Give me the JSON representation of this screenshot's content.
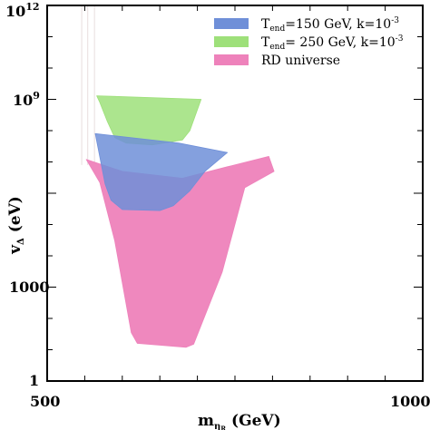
{
  "chart_data": {
    "type": "area",
    "x_axis": {
      "label_main": "m",
      "label_sub": "η",
      "label_subsub": "R",
      "label_unit": " (GeV)",
      "range": [
        500,
        1000
      ],
      "ticks": [
        500,
        1000
      ],
      "tick_labels": [
        "500",
        "1000"
      ]
    },
    "y_axis": {
      "label_main": "v",
      "label_sub": "Δ",
      "label_unit": " (eV)",
      "scale": "log",
      "range": [
        1,
        1000000000000.0
      ],
      "ticks": [
        1,
        1000,
        1000000000.0,
        1000000000000.0
      ],
      "tick_labels": {
        "t1": "1",
        "t1000": "1000",
        "t1e9_base": "10",
        "t1e9_exp": "9",
        "t1e12_base": "10",
        "t1e12_exp": "12"
      }
    },
    "legend": {
      "position": "top-right",
      "entries": [
        {
          "text_main": "T",
          "text_sub": "end",
          "text_rest": "=150 GeV, k=10",
          "text_sup": "-3",
          "color": "#6f8fd8"
        },
        {
          "text_main": "T",
          "text_sub": "end",
          "text_rest": "= 250 GeV, k=10",
          "text_sup": "-3",
          "color": "#9ee07a"
        },
        {
          "text_main": "RD universe",
          "text_sub": "",
          "text_rest": "",
          "text_sup": "",
          "color": "#ee82bb"
        }
      ]
    },
    "series": [
      {
        "key": "rd",
        "color": "#ee82bb",
        "opacity": 0.95,
        "boundary": [
          [
            552,
            12000000.0
          ],
          [
            570,
            2200000.0
          ],
          [
            590,
            30000.0
          ],
          [
            612,
            35
          ],
          [
            620,
            16
          ],
          [
            685,
            12
          ],
          [
            695,
            15
          ],
          [
            733,
            3000
          ],
          [
            763,
            1500000.0
          ],
          [
            802,
            5000000.0
          ],
          [
            795,
            15000000.0
          ],
          [
            740,
            7000000.0
          ],
          [
            680,
            3000000.0
          ],
          [
            600,
            5000000.0
          ]
        ]
      },
      {
        "key": "t250",
        "color": "#9ee07a",
        "opacity": 0.85,
        "boundary": [
          [
            566,
            1300000000.0
          ],
          [
            705,
            1000000000.0
          ],
          [
            690,
            100000000.0
          ],
          [
            680,
            50000000.0
          ],
          [
            640,
            35000000.0
          ],
          [
            605,
            40000000.0
          ],
          [
            590,
            60000000.0
          ],
          [
            580,
            200000000.0
          ],
          [
            570,
            800000000.0
          ]
        ]
      },
      {
        "key": "t150",
        "color": "#6f8fd8",
        "opacity": 0.85,
        "boundary": [
          [
            564,
            80000000.0
          ],
          [
            675,
            40000000.0
          ],
          [
            740,
            20000000.0
          ],
          [
            710,
            5000000.0
          ],
          [
            690,
            1200000.0
          ],
          [
            668,
            400000.0
          ],
          [
            650,
            280000.0
          ],
          [
            600,
            300000.0
          ],
          [
            585,
            600000.0
          ],
          [
            577,
            2000000.0
          ]
        ]
      }
    ],
    "background_lines_x": [
      546,
      554,
      563
    ]
  }
}
